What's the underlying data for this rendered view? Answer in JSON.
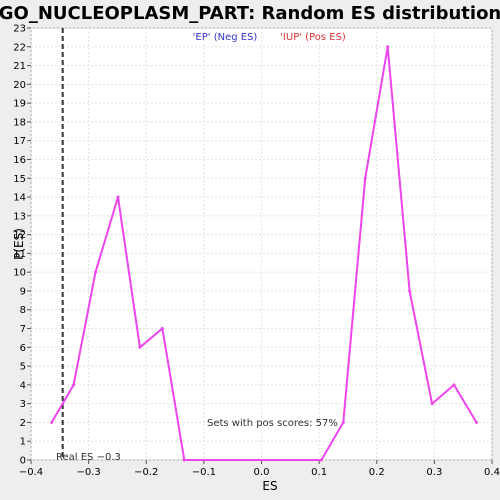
{
  "chart_data": {
    "type": "line",
    "title": "GO_NUCLEOPLASM_PART: Random ES distribution",
    "xlabel": "ES",
    "ylabel": "P(ES)",
    "xlim": [
      -0.4,
      0.4
    ],
    "ylim": [
      0,
      23
    ],
    "x_ticks": [
      -0.4,
      -0.3,
      -0.2,
      -0.1,
      0.0,
      0.1,
      0.2,
      0.3,
      0.4
    ],
    "x_tick_labels": [
      "−0.4",
      "−0.3",
      "−0.2",
      "−0.1",
      "0.0",
      "0.1",
      "0.2",
      "0.3",
      "0.4"
    ],
    "y_ticks": [
      0,
      1,
      2,
      3,
      4,
      5,
      6,
      7,
      8,
      9,
      10,
      11,
      12,
      13,
      14,
      15,
      16,
      17,
      18,
      19,
      20,
      21,
      22,
      23
    ],
    "grid": true,
    "legend_position": "top-center",
    "legend": [
      {
        "label": "'EP' (Neg ES)",
        "color": "#3333cc"
      },
      {
        "label": "'IUP' (Pos ES)",
        "color": "#dd3333"
      }
    ],
    "series": [
      {
        "color": "#ee44ee",
        "x": [
          -0.364,
          -0.326,
          -0.288,
          -0.249,
          -0.211,
          -0.172,
          -0.134,
          0.104,
          0.142,
          0.18,
          0.219,
          0.257,
          0.296,
          0.334,
          0.373
        ],
        "y": [
          2,
          4,
          10,
          14,
          6,
          7,
          0,
          0,
          2,
          15,
          22,
          9,
          3,
          4,
          2
        ]
      }
    ],
    "real_es": {
      "value": -0.345,
      "label": "Real ES −0.3"
    },
    "annotation": "Sets with pos scores: 57%"
  }
}
